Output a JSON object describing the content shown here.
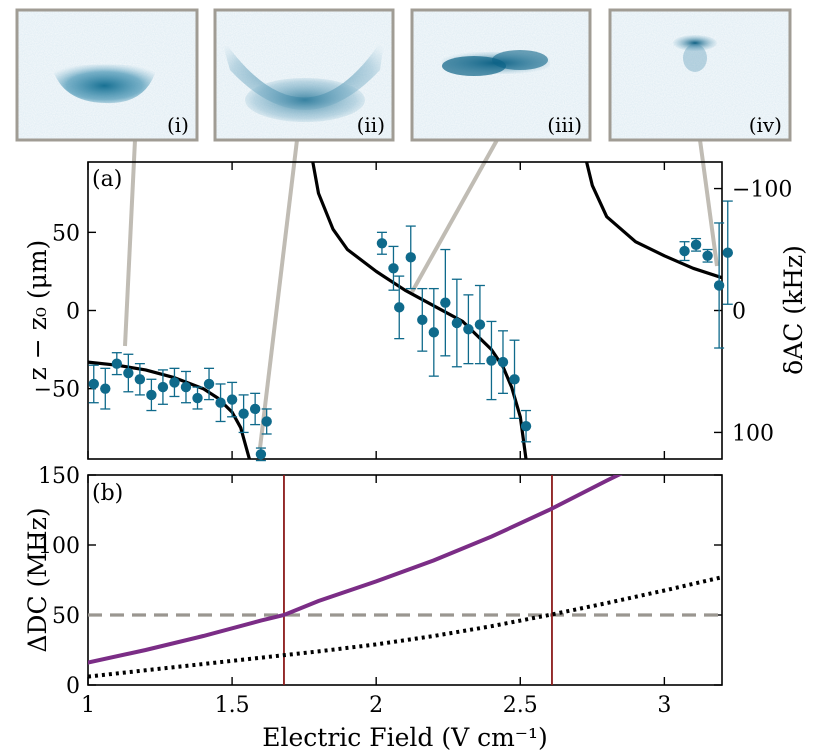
{
  "colors": {
    "data_points": "#0f6a8b",
    "fit_curve": "#000000",
    "delta_dc_curve": "#7b2d86",
    "dotted_curve": "#000000",
    "threshold_line": "#9a9690",
    "vertical_lines": "#8b1a1a",
    "inset_border": "#a09c94",
    "connector": "#c0bcb4"
  },
  "insets": [
    {
      "label": "(i)"
    },
    {
      "label": "(ii)"
    },
    {
      "label": "(iii)"
    },
    {
      "label": "(iv)"
    }
  ],
  "chart_data": [
    {
      "panel": "(a)",
      "type": "scatter",
      "ylabel": "z − z₀ (μm)",
      "ylabel_right": "δAC (kHz)",
      "xlim": [
        1.0,
        3.2
      ],
      "ylim": [
        -95,
        95
      ],
      "yticks": [
        50,
        0,
        -50
      ],
      "yticks_right": [
        -100,
        0,
        100
      ],
      "xticks": [
        1,
        1.5,
        2,
        2.5,
        3
      ],
      "series": [
        {
          "kind": "points_with_error",
          "points": [
            {
              "x": 1.02,
              "y": -47,
              "err": 12
            },
            {
              "x": 1.06,
              "y": -50,
              "err": 13
            },
            {
              "x": 1.1,
              "y": -34,
              "err": 7
            },
            {
              "x": 1.14,
              "y": -40,
              "err": 12
            },
            {
              "x": 1.18,
              "y": -44,
              "err": 10
            },
            {
              "x": 1.22,
              "y": -54,
              "err": 10
            },
            {
              "x": 1.26,
              "y": -49,
              "err": 11
            },
            {
              "x": 1.3,
              "y": -46,
              "err": 9
            },
            {
              "x": 1.34,
              "y": -49,
              "err": 10
            },
            {
              "x": 1.38,
              "y": -56,
              "err": 7
            },
            {
              "x": 1.42,
              "y": -47,
              "err": 10
            },
            {
              "x": 1.46,
              "y": -59,
              "err": 12
            },
            {
              "x": 1.5,
              "y": -57,
              "err": 11
            },
            {
              "x": 1.54,
              "y": -66,
              "err": 12
            },
            {
              "x": 1.58,
              "y": -63,
              "err": 10
            },
            {
              "x": 1.62,
              "y": -71,
              "err": 8
            },
            {
              "x": 1.6,
              "y": -92,
              "err": 4
            },
            {
              "x": 2.02,
              "y": 43,
              "err": 7
            },
            {
              "x": 2.06,
              "y": 27,
              "err": 14
            },
            {
              "x": 2.08,
              "y": 2,
              "err": 20
            },
            {
              "x": 2.12,
              "y": 34,
              "err": 20
            },
            {
              "x": 2.16,
              "y": -6,
              "err": 20
            },
            {
              "x": 2.2,
              "y": -14,
              "err": 28
            },
            {
              "x": 2.24,
              "y": 5,
              "err": 34
            },
            {
              "x": 2.28,
              "y": -8,
              "err": 28
            },
            {
              "x": 2.32,
              "y": -12,
              "err": 22
            },
            {
              "x": 2.36,
              "y": -9,
              "err": 25
            },
            {
              "x": 2.4,
              "y": -32,
              "err": 25
            },
            {
              "x": 2.44,
              "y": -33,
              "err": 20
            },
            {
              "x": 2.48,
              "y": -44,
              "err": 25
            },
            {
              "x": 2.52,
              "y": -74,
              "err": 10
            },
            {
              "x": 3.07,
              "y": 38,
              "err": 6
            },
            {
              "x": 3.11,
              "y": 42,
              "err": 4
            },
            {
              "x": 3.15,
              "y": 35,
              "err": 4
            },
            {
              "x": 3.19,
              "y": 16,
              "err": 40
            },
            {
              "x": 3.22,
              "y": 37,
              "err": 33
            }
          ]
        },
        {
          "kind": "fit_curve",
          "segments": [
            [
              [
                1.0,
                -33
              ],
              [
                1.1,
                -35
              ],
              [
                1.2,
                -38
              ],
              [
                1.3,
                -43
              ],
              [
                1.4,
                -50
              ],
              [
                1.45,
                -56
              ],
              [
                1.5,
                -65
              ],
              [
                1.53,
                -75
              ],
              [
                1.56,
                -95
              ]
            ],
            [
              [
                1.78,
                95
              ],
              [
                1.8,
                75
              ],
              [
                1.85,
                52
              ],
              [
                1.9,
                39
              ],
              [
                2.0,
                25
              ],
              [
                2.1,
                13
              ],
              [
                2.2,
                3
              ],
              [
                2.3,
                -7
              ],
              [
                2.4,
                -25
              ],
              [
                2.44,
                -36
              ],
              [
                2.47,
                -49
              ],
              [
                2.5,
                -68
              ],
              [
                2.52,
                -95
              ]
            ],
            [
              [
                2.73,
                95
              ],
              [
                2.75,
                80
              ],
              [
                2.8,
                60
              ],
              [
                2.9,
                44
              ],
              [
                3.0,
                35
              ],
              [
                3.1,
                27
              ],
              [
                3.2,
                21
              ]
            ]
          ]
        }
      ]
    },
    {
      "panel": "(b)",
      "type": "line",
      "xlabel": "Electric Field (V cm⁻¹)",
      "ylabel": "ΔDC (MHz)",
      "xlim": [
        1.0,
        3.2
      ],
      "ylim": [
        0,
        150
      ],
      "yticks": [
        0,
        50,
        100,
        150
      ],
      "xticks": [
        1,
        1.5,
        2,
        2.5,
        3
      ],
      "xtick_labels": [
        "1",
        "1.5",
        "2",
        "2.5",
        "3"
      ],
      "series": [
        {
          "kind": "solid",
          "points": [
            [
              1.0,
              16
            ],
            [
              1.2,
              25
            ],
            [
              1.4,
              35
            ],
            [
              1.6,
              46
            ],
            [
              1.68,
              50
            ],
            [
              1.8,
              60
            ],
            [
              2.0,
              74
            ],
            [
              2.2,
              89
            ],
            [
              2.4,
              106
            ],
            [
              2.6,
              125
            ],
            [
              2.8,
              146
            ],
            [
              2.85,
              151
            ]
          ]
        },
        {
          "kind": "dotted",
          "points": [
            [
              1.0,
              6
            ],
            [
              1.2,
              10.5
            ],
            [
              1.4,
              15
            ],
            [
              1.6,
              19.5
            ],
            [
              1.8,
              24
            ],
            [
              2.0,
              29
            ],
            [
              2.2,
              35
            ],
            [
              2.4,
              42
            ],
            [
              2.6,
              50
            ],
            [
              2.8,
              58.5
            ],
            [
              3.0,
              67.5
            ],
            [
              3.2,
              77
            ]
          ]
        },
        {
          "kind": "hline",
          "y": 50
        },
        {
          "kind": "vline",
          "x": 1.68
        },
        {
          "kind": "vline",
          "x": 2.61
        }
      ]
    }
  ]
}
